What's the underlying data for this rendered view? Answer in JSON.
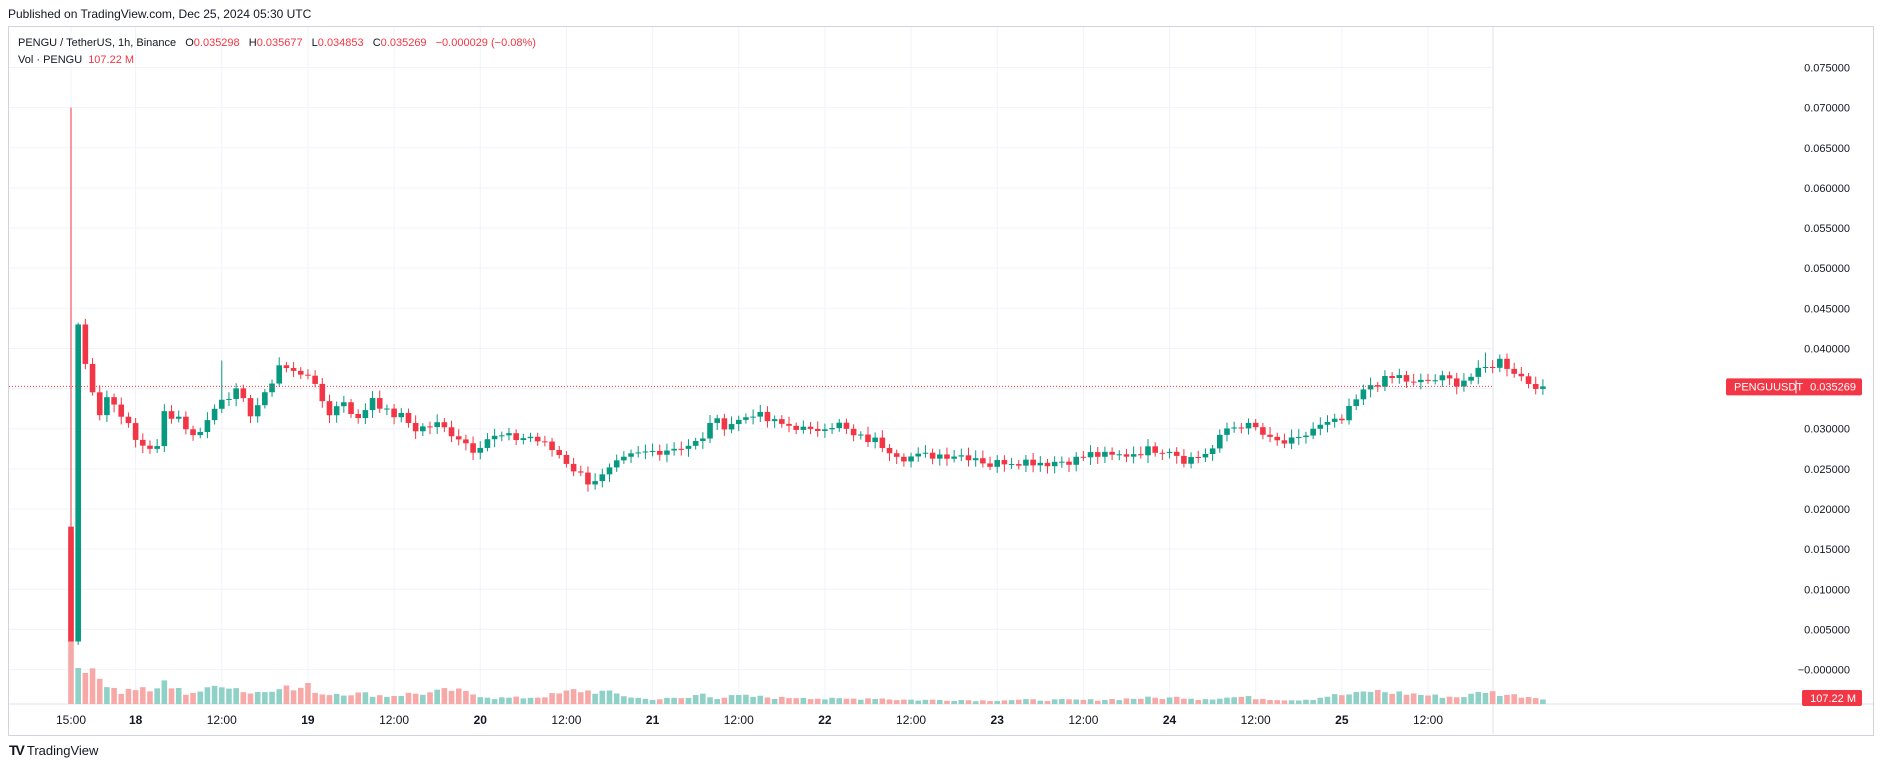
{
  "header": {
    "published": "Published on TradingView.com, Dec 25, 2024 05:30 UTC"
  },
  "legend": {
    "symbol": "PENGU / TetherUS, 1h, Binance",
    "o_label": "O",
    "o": "0.035298",
    "h_label": "H",
    "h": "0.035677",
    "l_label": "L",
    "l": "0.034853",
    "c_label": "C",
    "c": "0.035269",
    "change": "−0.000029 (−0.08%)",
    "vol_label": "Vol · PENGU",
    "vol": "107.22 M"
  },
  "price_tag": {
    "symbol": "PENGUUSDT",
    "value": "0.035269"
  },
  "volume_tag": "107.22 M",
  "footer": {
    "logo_mark": "TV",
    "brand": "TradingView"
  },
  "colors": {
    "up": "#089981",
    "down": "#f23645",
    "vol_up": "#8fd1c6",
    "vol_down": "#f7a9a7",
    "grid": "#f0f3fa",
    "text": "#131722"
  },
  "chart_data": {
    "type": "candlestick",
    "title": "PENGU / TetherUS, 1h, Binance",
    "y_axis": {
      "ticks": [
        "0.075000",
        "0.070000",
        "0.065000",
        "0.060000",
        "0.055000",
        "0.050000",
        "0.045000",
        "0.040000",
        "0.035000",
        "0.030000",
        "0.025000",
        "0.020000",
        "0.015000",
        "0.010000",
        "0.005000",
        "−0.000000"
      ],
      "tick_values": [
        0.075,
        0.07,
        0.065,
        0.06,
        0.055,
        0.05,
        0.045,
        0.04,
        0.035,
        0.03,
        0.025,
        0.02,
        0.015,
        0.01,
        0.005,
        0.0
      ],
      "range": [
        -0.0013,
        0.0778
      ]
    },
    "x_axis": {
      "ticks": [
        {
          "label": "15:00",
          "t": 0,
          "bold": false
        },
        {
          "label": "18",
          "t": 9,
          "bold": true
        },
        {
          "label": "12:00",
          "t": 21,
          "bold": false
        },
        {
          "label": "19",
          "t": 33,
          "bold": true
        },
        {
          "label": "12:00",
          "t": 45,
          "bold": false
        },
        {
          "label": "20",
          "t": 57,
          "bold": true
        },
        {
          "label": "12:00",
          "t": 69,
          "bold": false
        },
        {
          "label": "21",
          "t": 81,
          "bold": true
        },
        {
          "label": "12:00",
          "t": 93,
          "bold": false
        },
        {
          "label": "22",
          "t": 105,
          "bold": true
        },
        {
          "label": "12:00",
          "t": 117,
          "bold": false
        },
        {
          "label": "23",
          "t": 129,
          "bold": true
        },
        {
          "label": "12:00",
          "t": 141,
          "bold": false
        },
        {
          "label": "24",
          "t": 153,
          "bold": true
        },
        {
          "label": "12:00",
          "t": 165,
          "bold": false
        },
        {
          "label": "25",
          "t": 177,
          "bold": true
        },
        {
          "label": "12:00",
          "t": 189,
          "bold": false
        }
      ]
    },
    "last_price": 0.035269,
    "price_anchors": [
      [
        0,
        0.0035
      ],
      [
        1,
        0.043
      ],
      [
        2,
        0.038
      ],
      [
        3,
        0.035
      ],
      [
        4,
        0.032
      ],
      [
        5,
        0.034
      ],
      [
        7,
        0.032
      ],
      [
        9,
        0.0285
      ],
      [
        10,
        0.028
      ],
      [
        12,
        0.0275
      ],
      [
        13,
        0.032
      ],
      [
        15,
        0.0315
      ],
      [
        17,
        0.029
      ],
      [
        19,
        0.031
      ],
      [
        21,
        0.034
      ],
      [
        23,
        0.0345
      ],
      [
        25,
        0.032
      ],
      [
        27,
        0.034
      ],
      [
        29,
        0.038
      ],
      [
        31,
        0.037
      ],
      [
        33,
        0.037
      ],
      [
        34,
        0.035
      ],
      [
        36,
        0.032
      ],
      [
        38,
        0.0335
      ],
      [
        40,
        0.031
      ],
      [
        42,
        0.034
      ],
      [
        44,
        0.032
      ],
      [
        46,
        0.0315
      ],
      [
        48,
        0.03
      ],
      [
        51,
        0.0305
      ],
      [
        54,
        0.029
      ],
      [
        56,
        0.0275
      ],
      [
        58,
        0.0288
      ],
      [
        60,
        0.029
      ],
      [
        62,
        0.0288
      ],
      [
        64,
        0.029
      ],
      [
        66,
        0.028
      ],
      [
        68,
        0.0268
      ],
      [
        70,
        0.025
      ],
      [
        72,
        0.0235
      ],
      [
        74,
        0.024
      ],
      [
        76,
        0.0255
      ],
      [
        78,
        0.0265
      ],
      [
        80,
        0.027
      ],
      [
        83,
        0.0275
      ],
      [
        86,
        0.028
      ],
      [
        88,
        0.0285
      ],
      [
        89,
        0.031
      ],
      [
        91,
        0.0305
      ],
      [
        93,
        0.031
      ],
      [
        95,
        0.032
      ],
      [
        97,
        0.031
      ],
      [
        99,
        0.0305
      ],
      [
        101,
        0.0303
      ],
      [
        103,
        0.0295
      ],
      [
        105,
        0.0305
      ],
      [
        107,
        0.0305
      ],
      [
        109,
        0.029
      ],
      [
        112,
        0.0285
      ],
      [
        114,
        0.0275
      ],
      [
        116,
        0.0265
      ],
      [
        118,
        0.0265
      ],
      [
        121,
        0.0268
      ],
      [
        123,
        0.0268
      ],
      [
        126,
        0.0265
      ],
      [
        128,
        0.0255
      ],
      [
        130,
        0.026
      ],
      [
        133,
        0.026
      ],
      [
        136,
        0.0258
      ],
      [
        138,
        0.026
      ],
      [
        140,
        0.0262
      ],
      [
        142,
        0.0268
      ],
      [
        145,
        0.0265
      ],
      [
        147,
        0.0268
      ],
      [
        149,
        0.0272
      ],
      [
        151,
        0.0275
      ],
      [
        153,
        0.0275
      ],
      [
        155,
        0.0262
      ],
      [
        157,
        0.0265
      ],
      [
        159,
        0.0275
      ],
      [
        161,
        0.03
      ],
      [
        163,
        0.0305
      ],
      [
        165,
        0.03
      ],
      [
        167,
        0.0285
      ],
      [
        169,
        0.0282
      ],
      [
        171,
        0.0285
      ],
      [
        173,
        0.03
      ],
      [
        175,
        0.0305
      ],
      [
        177,
        0.031
      ],
      [
        179,
        0.0335
      ],
      [
        181,
        0.0355
      ],
      [
        183,
        0.036
      ],
      [
        185,
        0.0365
      ],
      [
        187,
        0.0355
      ],
      [
        189,
        0.036
      ],
      [
        191,
        0.0362
      ],
      [
        193,
        0.0358
      ],
      [
        195,
        0.0365
      ],
      [
        197,
        0.0375
      ],
      [
        199,
        0.0385
      ],
      [
        201,
        0.0372
      ],
      [
        203,
        0.0358
      ],
      [
        205,
        0.03527
      ]
    ],
    "n_candles": 206,
    "volume_anchors": [
      [
        0,
        1.0
      ],
      [
        1,
        0.72
      ],
      [
        2,
        0.62
      ],
      [
        3,
        0.58
      ],
      [
        4,
        0.5
      ],
      [
        5,
        0.44
      ],
      [
        6,
        0.34
      ],
      [
        7,
        0.24
      ],
      [
        9,
        0.32
      ],
      [
        12,
        0.26
      ],
      [
        13,
        0.45
      ],
      [
        14,
        0.33
      ],
      [
        16,
        0.22
      ],
      [
        19,
        0.28
      ],
      [
        21,
        0.42
      ],
      [
        23,
        0.32
      ],
      [
        25,
        0.22
      ],
      [
        27,
        0.26
      ],
      [
        29,
        0.38
      ],
      [
        31,
        0.28
      ],
      [
        33,
        0.35
      ],
      [
        35,
        0.2
      ],
      [
        38,
        0.22
      ],
      [
        41,
        0.2
      ],
      [
        44,
        0.16
      ],
      [
        47,
        0.2
      ],
      [
        50,
        0.22
      ],
      [
        53,
        0.28
      ],
      [
        56,
        0.2
      ],
      [
        59,
        0.12
      ],
      [
        62,
        0.12
      ],
      [
        65,
        0.14
      ],
      [
        68,
        0.2
      ],
      [
        70,
        0.27
      ],
      [
        72,
        0.26
      ],
      [
        74,
        0.24
      ],
      [
        76,
        0.2
      ],
      [
        78,
        0.14
      ],
      [
        80,
        0.1
      ],
      [
        82,
        0.1
      ],
      [
        86,
        0.12
      ],
      [
        88,
        0.22
      ],
      [
        90,
        0.12
      ],
      [
        93,
        0.16
      ],
      [
        96,
        0.14
      ],
      [
        99,
        0.12
      ],
      [
        102,
        0.14
      ],
      [
        105,
        0.1
      ],
      [
        108,
        0.1
      ],
      [
        112,
        0.12
      ],
      [
        115,
        0.09
      ],
      [
        118,
        0.08
      ],
      [
        121,
        0.08
      ],
      [
        124,
        0.08
      ],
      [
        127,
        0.07
      ],
      [
        130,
        0.08
      ],
      [
        134,
        0.08
      ],
      [
        138,
        0.08
      ],
      [
        142,
        0.08
      ],
      [
        146,
        0.1
      ],
      [
        150,
        0.12
      ],
      [
        153,
        0.12
      ],
      [
        155,
        0.14
      ],
      [
        157,
        0.1
      ],
      [
        160,
        0.12
      ],
      [
        163,
        0.14
      ],
      [
        167,
        0.1
      ],
      [
        170,
        0.08
      ],
      [
        173,
        0.1
      ],
      [
        175,
        0.16
      ],
      [
        177,
        0.18
      ],
      [
        179,
        0.2
      ],
      [
        181,
        0.26
      ],
      [
        183,
        0.24
      ],
      [
        185,
        0.22
      ],
      [
        187,
        0.2
      ],
      [
        190,
        0.16
      ],
      [
        193,
        0.14
      ],
      [
        195,
        0.18
      ],
      [
        197,
        0.26
      ],
      [
        199,
        0.2
      ],
      [
        202,
        0.16
      ],
      [
        205,
        0.12
      ]
    ],
    "volume_spikes": {
      "first_bar_height_ratio": 1.0
    }
  }
}
